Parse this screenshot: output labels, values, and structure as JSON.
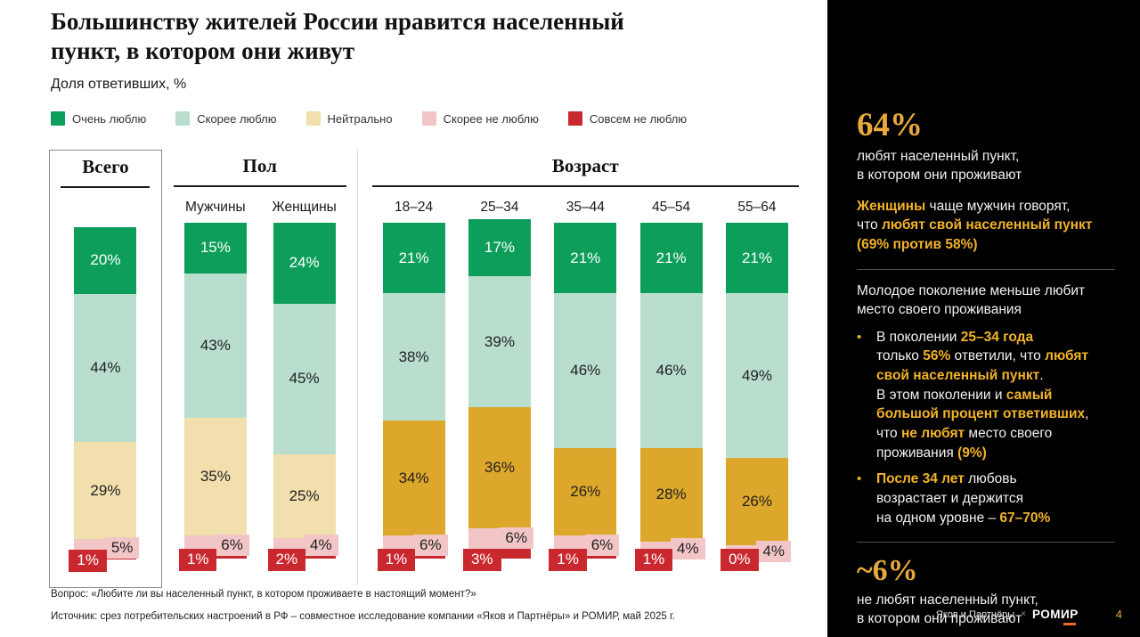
{
  "slide": {
    "subtitle": "Доля ответивших, %",
    "footnote_question": "Вопрос: «Любите ли вы населенный пункт, в котором проживаете в настоящий момент?»",
    "footnote_source": "Источник: срез потребительских настроений в РФ – совместное исследование компании «Яков и Партнёры» и РОМИР, май 2025 г.",
    "footer_brand_left": "Яков и Партнёры",
    "footer_brand_sep": "×",
    "footer_brand_right": "РОМИР",
    "page_number": "4"
  },
  "chart_data": {
    "type": "bar",
    "subtype": "stacked-100",
    "title": "Большинству жителей России нравится населенный\nпункт, в котором они живут",
    "ylabel": "Доля ответивших, %",
    "unit": "%",
    "legend_position": "top",
    "legend": [
      {
        "id": "very-love",
        "label": "Очень люблю",
        "color": "#0D9E5B"
      },
      {
        "id": "rather-love",
        "label": "Скорее люблю",
        "color": "#B9DECD"
      },
      {
        "id": "neutral",
        "label": "Нейтрально",
        "color": "#F2DFAE"
      },
      {
        "id": "rather-dislike",
        "label": "Скорее не люблю",
        "color": "#F2C6C7"
      },
      {
        "id": "strong-dislike",
        "label": "Совсем не люблю",
        "color": "#C9292E"
      }
    ],
    "groups": [
      {
        "id": "total",
        "name": "Всего",
        "boxed": true,
        "bars": [
          {
            "label": "Всего",
            "values": [
              20,
              44,
              29,
              5,
              1
            ]
          }
        ]
      },
      {
        "id": "gender",
        "name": "Пол",
        "bars": [
          {
            "label": "Мужчины",
            "values": [
              15,
              43,
              35,
              6,
              1
            ]
          },
          {
            "label": "Женщины",
            "values": [
              24,
              45,
              25,
              4,
              2
            ]
          }
        ]
      },
      {
        "id": "age",
        "name": "Возраст",
        "neutral_override": "#DCA72B",
        "bars": [
          {
            "label": "18–24",
            "values": [
              21,
              38,
              34,
              6,
              1
            ]
          },
          {
            "label": "25–34",
            "values": [
              17,
              39,
              36,
              6,
              3
            ]
          },
          {
            "label": "35–44",
            "values": [
              21,
              46,
              26,
              6,
              1
            ]
          },
          {
            "label": "45–54",
            "values": [
              21,
              46,
              28,
              4,
              1
            ]
          },
          {
            "label": "55–64",
            "values": [
              21,
              49,
              26,
              4,
              0
            ]
          }
        ]
      }
    ]
  },
  "sidebar": {
    "stat1_value": "64%",
    "stat1_text": "любят населенный пункт,\nв котором они проживают",
    "p_gender": [
      {
        "t": "Женщины",
        "g": true
      },
      {
        "t": " чаще мужчин говорят,\nчто ",
        "g": false
      },
      {
        "t": "любят свой населенный пункт",
        "g": true
      },
      {
        "t": "\n",
        "g": false
      },
      {
        "t": "(69% против 58%)",
        "g": true
      }
    ],
    "section2_title": "Молодое поколение меньше любит\nместо своего проживания",
    "bullet1": [
      {
        "t": "В поколении ",
        "g": false
      },
      {
        "t": "25–34 года",
        "g": true
      },
      {
        "t": "\nтолько ",
        "g": false
      },
      {
        "t": "56%",
        "g": true
      },
      {
        "t": " ответили, что ",
        "g": false
      },
      {
        "t": "любят\nсвой населенный пункт",
        "g": true
      },
      {
        "t": ".\nВ этом поколении и ",
        "g": false
      },
      {
        "t": "самый\nбольшой процент ответивших",
        "g": true
      },
      {
        "t": ",\nчто ",
        "g": false
      },
      {
        "t": "не любят",
        "g": true
      },
      {
        "t": " место своего\nпроживания ",
        "g": false
      },
      {
        "t": "(9%)",
        "g": true
      }
    ],
    "bullet2": [
      {
        "t": "После 34 лет",
        "g": true
      },
      {
        "t": " любовь\nвозрастает и держится\nна одном уровне – ",
        "g": false
      },
      {
        "t": "67–70%",
        "g": true
      }
    ],
    "stat2_value": "~6%",
    "stat2_text": "не любят населенный пункт,\nв котором они проживают"
  }
}
